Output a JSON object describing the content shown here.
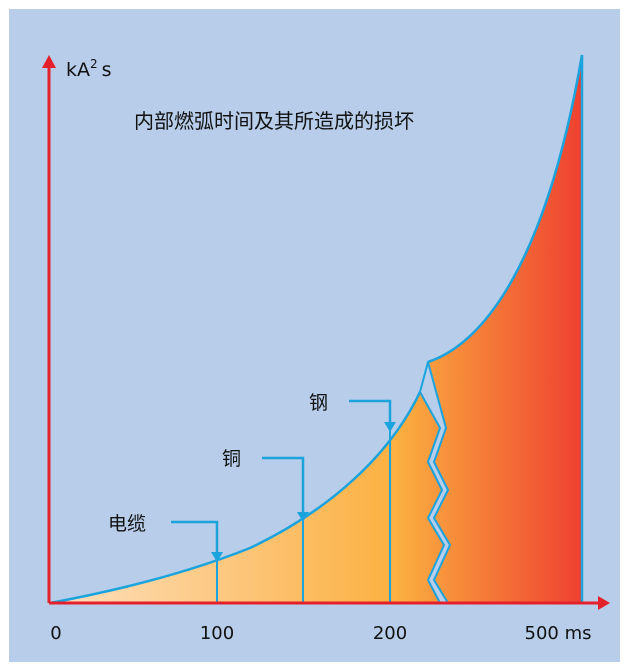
{
  "title": "内部燃弧时间及其所造成的损坏",
  "y_axis": {
    "unit_main": "kA",
    "unit_sup": "2",
    "unit_tail": "s"
  },
  "x_axis": {
    "ticks": [
      "0",
      "100",
      "200",
      "500 ms"
    ]
  },
  "callouts": {
    "cable": "电缆",
    "copper": "铜",
    "steel": "钢"
  },
  "colors": {
    "background": "#b7cde9",
    "axis": "#e4202a",
    "curve": "#1aa3dd",
    "gradient_start": "#fde0c0",
    "gradient_mid": "#fbb040",
    "gradient_end": "#ee4130"
  }
}
